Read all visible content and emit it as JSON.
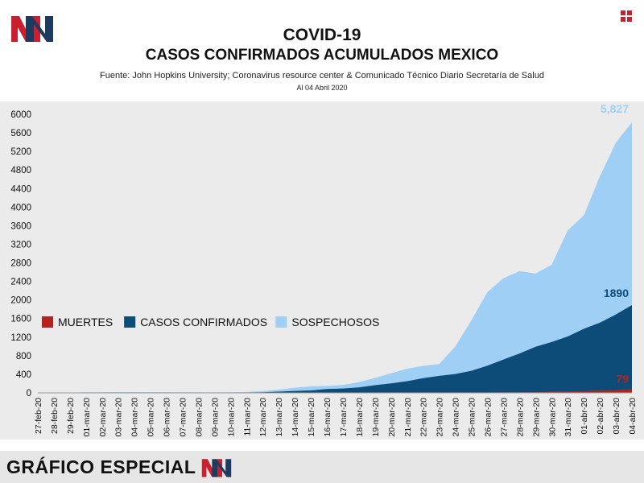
{
  "header": {
    "logo_text": "MN",
    "title": "COVID-19",
    "subtitle": "CASOS CONFIRMADOS ACUMULADOS MEXICO",
    "source": "Fuente: John Hopkins University; Coronavirus resource center & Comunicado Técnico Diario Secretaría de Salud",
    "date": "Al 04 Abril 2020"
  },
  "footer": {
    "text": "GRÁFICO ESPECIAL",
    "logo_text": "MN"
  },
  "colors": {
    "muertes": "#b5241c",
    "confirmados": "#0d4c78",
    "sospechosos": "#9fcff5",
    "brand_red": "#c8202f",
    "brand_navy": "#1f3a5f"
  },
  "chart_data": {
    "type": "area",
    "title": "",
    "xlabel": "",
    "ylabel": "",
    "ylim": [
      0,
      6000
    ],
    "yticks": [
      0,
      400,
      800,
      1200,
      1600,
      2000,
      2400,
      2800,
      3200,
      3600,
      4000,
      4400,
      4800,
      5200,
      5600,
      6000
    ],
    "grid": false,
    "legend": "center-left",
    "categories": [
      "27-feb-20",
      "28-feb-20",
      "29-feb-20",
      "01-mar-20",
      "02-mar-20",
      "03-mar-20",
      "04-mar-20",
      "05-mar-20",
      "06-mar-20",
      "07-mar-20",
      "08-mar-20",
      "09-mar-20",
      "10-mar-20",
      "11-mar-20",
      "12-mar-20",
      "13-mar-20",
      "14-mar-20",
      "15-mar-20",
      "16-mar-20",
      "17-mar-20",
      "18-mar-20",
      "19-mar-20",
      "20-mar-20",
      "21-mar-20",
      "22-mar-20",
      "23-mar-20",
      "24-mar-20",
      "25-mar-20",
      "26-mar-20",
      "27-mar-20",
      "28-mar-20",
      "29-mar-20",
      "30-mar-20",
      "31-mar-20",
      "01-abr-20",
      "02-abr-20",
      "03-abr-20",
      "04-abr-20"
    ],
    "series": [
      {
        "name": "MUERTES",
        "values": [
          0,
          0,
          0,
          0,
          0,
          0,
          0,
          0,
          0,
          0,
          0,
          0,
          0,
          0,
          0,
          0,
          0,
          0,
          0,
          0,
          0,
          1,
          1,
          2,
          2,
          4,
          5,
          6,
          8,
          12,
          16,
          20,
          28,
          29,
          37,
          50,
          60,
          79
        ]
      },
      {
        "name": "CASOS CONFIRMADOS",
        "values": [
          2,
          4,
          4,
          5,
          5,
          5,
          5,
          5,
          6,
          7,
          7,
          7,
          7,
          8,
          12,
          26,
          41,
          53,
          82,
          93,
          118,
          164,
          203,
          251,
          316,
          367,
          405,
          475,
          585,
          717,
          848,
          993,
          1094,
          1215,
          1378,
          1510,
          1688,
          1890
        ]
      },
      {
        "name": "SOSPECHOSOS",
        "values": [
          5,
          6,
          6,
          12,
          14,
          18,
          18,
          16,
          16,
          14,
          12,
          10,
          12,
          20,
          40,
          70,
          110,
          140,
          150,
          170,
          230,
          320,
          420,
          520,
          580,
          620,
          1000,
          1560,
          2170,
          2470,
          2620,
          2570,
          2760,
          3500,
          3820,
          4660,
          5390,
          5827
        ]
      }
    ],
    "annotations": [
      {
        "series": "SOSPECHOSOS",
        "label": "5,827"
      },
      {
        "series": "CASOS CONFIRMADOS",
        "label": "1890"
      },
      {
        "series": "MUERTES",
        "label": "79"
      }
    ]
  }
}
